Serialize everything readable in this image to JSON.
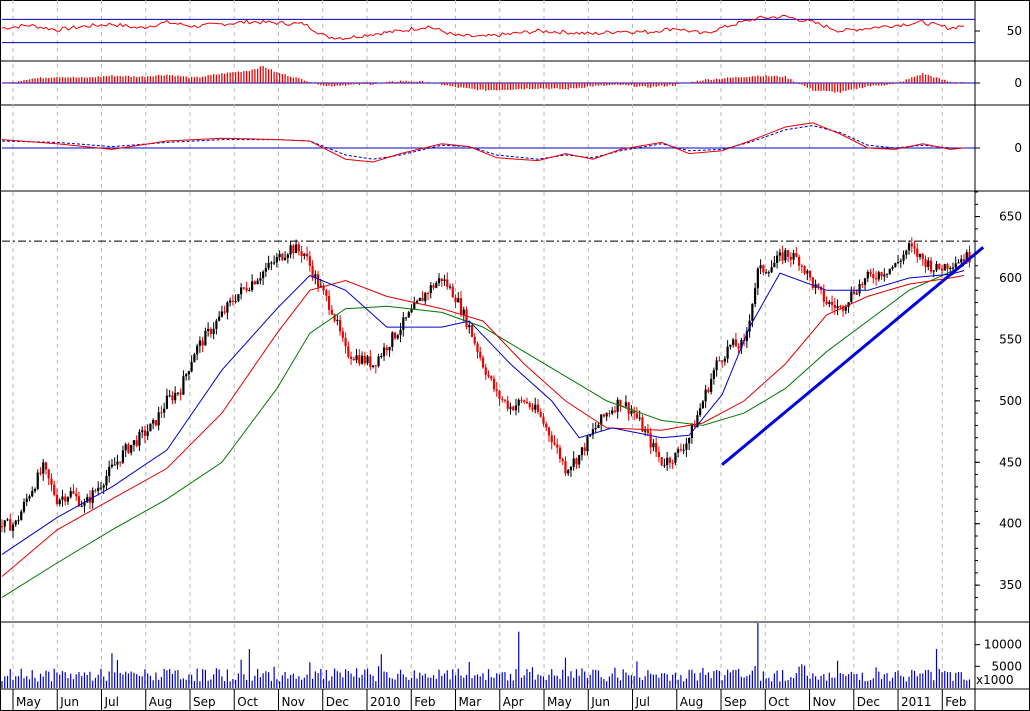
{
  "chart_data": {
    "type": "line",
    "subtype": "stock-ohlc-with-indicators",
    "time_labels": [
      "May",
      "Jun",
      "Jul",
      "Aug",
      "Sep",
      "Oct",
      "Nov",
      "Dec",
      "2010",
      "Feb",
      "Mar",
      "Apr",
      "May",
      "Jun",
      "Jul",
      "Aug",
      "Sep",
      "Oct",
      "Nov",
      "Dec",
      "2011",
      "Feb"
    ],
    "price": {
      "ylim": [
        320,
        670
      ],
      "yticks": [
        "650",
        "600",
        "550",
        "500",
        "450",
        "400",
        "350"
      ],
      "ytick_values": [
        650,
        600,
        550,
        500,
        450,
        400,
        350
      ],
      "resistance_level": 630,
      "close_series": [
        [
          0,
          398
        ],
        [
          5,
          400
        ],
        [
          10,
          425
        ],
        [
          15,
          445
        ],
        [
          20,
          420
        ],
        [
          25,
          425
        ],
        [
          30,
          415
        ],
        [
          35,
          430
        ],
        [
          40,
          445
        ],
        [
          45,
          460
        ],
        [
          50,
          470
        ],
        [
          55,
          480
        ],
        [
          60,
          500
        ],
        [
          65,
          510
        ],
        [
          70,
          540
        ],
        [
          75,
          555
        ],
        [
          80,
          570
        ],
        [
          85,
          585
        ],
        [
          90,
          595
        ],
        [
          95,
          605
        ],
        [
          100,
          615
        ],
        [
          105,
          625
        ],
        [
          110,
          620
        ],
        [
          115,
          595
        ],
        [
          120,
          575
        ],
        [
          125,
          540
        ],
        [
          130,
          535
        ],
        [
          135,
          530
        ],
        [
          140,
          545
        ],
        [
          145,
          560
        ],
        [
          150,
          575
        ],
        [
          155,
          590
        ],
        [
          160,
          600
        ],
        [
          165,
          585
        ],
        [
          170,
          560
        ],
        [
          175,
          530
        ],
        [
          180,
          505
        ],
        [
          185,
          495
        ],
        [
          190,
          500
        ],
        [
          195,
          490
        ],
        [
          200,
          470
        ],
        [
          205,
          445
        ],
        [
          210,
          455
        ],
        [
          215,
          475
        ],
        [
          220,
          490
        ],
        [
          225,
          500
        ],
        [
          230,
          490
        ],
        [
          235,
          470
        ],
        [
          240,
          450
        ],
        [
          245,
          455
        ],
        [
          250,
          470
        ],
        [
          255,
          500
        ],
        [
          260,
          530
        ],
        [
          265,
          545
        ],
        [
          270,
          545
        ],
        [
          275,
          605
        ],
        [
          280,
          610
        ],
        [
          285,
          620
        ],
        [
          290,
          615
        ],
        [
          295,
          595
        ],
        [
          300,
          580
        ],
        [
          305,
          575
        ],
        [
          310,
          590
        ],
        [
          315,
          600
        ],
        [
          320,
          605
        ],
        [
          325,
          610
        ],
        [
          330,
          625
        ],
        [
          335,
          615
        ],
        [
          340,
          607
        ],
        [
          345,
          612
        ],
        [
          350,
          617
        ]
      ],
      "ma_blue": [
        [
          0,
          375
        ],
        [
          20,
          405
        ],
        [
          40,
          430
        ],
        [
          60,
          460
        ],
        [
          80,
          525
        ],
        [
          100,
          575
        ],
        [
          112,
          602
        ],
        [
          125,
          590
        ],
        [
          140,
          560
        ],
        [
          160,
          560
        ],
        [
          170,
          565
        ],
        [
          185,
          530
        ],
        [
          200,
          500
        ],
        [
          210,
          470
        ],
        [
          222,
          478
        ],
        [
          240,
          470
        ],
        [
          250,
          472
        ],
        [
          262,
          505
        ],
        [
          272,
          560
        ],
        [
          283,
          604
        ],
        [
          300,
          590
        ],
        [
          315,
          590
        ],
        [
          330,
          600
        ],
        [
          345,
          603
        ],
        [
          350,
          606
        ]
      ],
      "ma_red": [
        [
          0,
          357
        ],
        [
          20,
          395
        ],
        [
          40,
          420
        ],
        [
          60,
          445
        ],
        [
          80,
          490
        ],
        [
          100,
          555
        ],
        [
          112,
          590
        ],
        [
          125,
          598
        ],
        [
          140,
          585
        ],
        [
          160,
          575
        ],
        [
          175,
          565
        ],
        [
          190,
          530
        ],
        [
          205,
          500
        ],
        [
          220,
          478
        ],
        [
          240,
          476
        ],
        [
          255,
          482
        ],
        [
          270,
          500
        ],
        [
          285,
          530
        ],
        [
          300,
          570
        ],
        [
          315,
          585
        ],
        [
          330,
          595
        ],
        [
          345,
          600
        ],
        [
          350,
          602
        ]
      ],
      "ma_green": [
        [
          0,
          340
        ],
        [
          20,
          368
        ],
        [
          40,
          395
        ],
        [
          60,
          420
        ],
        [
          80,
          450
        ],
        [
          100,
          510
        ],
        [
          112,
          555
        ],
        [
          125,
          575
        ],
        [
          140,
          577
        ],
        [
          160,
          572
        ],
        [
          175,
          560
        ],
        [
          190,
          540
        ],
        [
          205,
          520
        ],
        [
          220,
          500
        ],
        [
          240,
          484
        ],
        [
          255,
          480
        ],
        [
          270,
          490
        ],
        [
          285,
          510
        ],
        [
          300,
          540
        ],
        [
          315,
          565
        ],
        [
          330,
          590
        ],
        [
          345,
          605
        ],
        [
          350,
          610
        ]
      ],
      "trendline": [
        [
          262,
          448
        ],
        [
          357,
          625
        ]
      ]
    },
    "volume": {
      "ylim": [
        0,
        15000
      ],
      "yticks": [
        "10000",
        "5000"
      ],
      "ytick_values": [
        10000,
        5000
      ],
      "unit_label": "x1000",
      "spikes": [
        [
          40,
          8000
        ],
        [
          90,
          9000
        ],
        [
          138,
          7800
        ],
        [
          188,
          13000
        ],
        [
          205,
          7000
        ],
        [
          275,
          15000
        ],
        [
          340,
          9000
        ]
      ]
    },
    "oscillator_top": {
      "ylim": [
        0,
        100
      ],
      "yticks": [
        "50"
      ],
      "ytick_values": [
        50
      ],
      "levels": [
        70,
        30
      ],
      "series": [
        [
          0,
          55
        ],
        [
          10,
          60
        ],
        [
          20,
          52
        ],
        [
          30,
          58
        ],
        [
          40,
          62
        ],
        [
          50,
          55
        ],
        [
          60,
          65
        ],
        [
          70,
          58
        ],
        [
          80,
          62
        ],
        [
          90,
          66
        ],
        [
          100,
          64
        ],
        [
          110,
          62
        ],
        [
          118,
          40
        ],
        [
          125,
          38
        ],
        [
          135,
          45
        ],
        [
          145,
          50
        ],
        [
          155,
          58
        ],
        [
          165,
          42
        ],
        [
          175,
          40
        ],
        [
          185,
          45
        ],
        [
          195,
          50
        ],
        [
          205,
          48
        ],
        [
          215,
          45
        ],
        [
          225,
          50
        ],
        [
          235,
          48
        ],
        [
          245,
          55
        ],
        [
          255,
          45
        ],
        [
          265,
          60
        ],
        [
          275,
          72
        ],
        [
          285,
          75
        ],
        [
          295,
          65
        ],
        [
          305,
          50
        ],
        [
          315,
          55
        ],
        [
          325,
          60
        ],
        [
          335,
          65
        ],
        [
          345,
          55
        ],
        [
          350,
          60
        ]
      ]
    },
    "histogram": {
      "ylim": [
        -20,
        20
      ],
      "yticks": [
        "0"
      ],
      "ytick_values": [
        0
      ],
      "series": [
        [
          0,
          -1
        ],
        [
          10,
          4
        ],
        [
          20,
          6
        ],
        [
          30,
          5
        ],
        [
          40,
          7
        ],
        [
          50,
          6
        ],
        [
          60,
          8
        ],
        [
          70,
          5
        ],
        [
          80,
          9
        ],
        [
          90,
          12
        ],
        [
          95,
          16
        ],
        [
          100,
          10
        ],
        [
          110,
          3
        ],
        [
          118,
          -3
        ],
        [
          125,
          -2
        ],
        [
          135,
          -1
        ],
        [
          145,
          2
        ],
        [
          155,
          1
        ],
        [
          165,
          -4
        ],
        [
          175,
          -7
        ],
        [
          185,
          -6
        ],
        [
          195,
          -5
        ],
        [
          205,
          -6
        ],
        [
          215,
          -3
        ],
        [
          225,
          -2
        ],
        [
          235,
          -4
        ],
        [
          245,
          -2
        ],
        [
          255,
          3
        ],
        [
          265,
          5
        ],
        [
          275,
          7
        ],
        [
          285,
          6
        ],
        [
          295,
          -7
        ],
        [
          305,
          -9
        ],
        [
          315,
          -3
        ],
        [
          325,
          -1
        ],
        [
          335,
          9
        ],
        [
          345,
          1
        ],
        [
          350,
          1
        ]
      ]
    },
    "macd": {
      "ylim": [
        -30,
        30
      ],
      "yticks": [
        "0"
      ],
      "ytick_values": [
        0
      ],
      "line": [
        [
          0,
          6
        ],
        [
          20,
          3
        ],
        [
          40,
          -1
        ],
        [
          60,
          5
        ],
        [
          80,
          7
        ],
        [
          100,
          6
        ],
        [
          112,
          5
        ],
        [
          125,
          -8
        ],
        [
          135,
          -10
        ],
        [
          145,
          -4
        ],
        [
          160,
          3
        ],
        [
          170,
          1
        ],
        [
          180,
          -7
        ],
        [
          195,
          -9
        ],
        [
          205,
          -4
        ],
        [
          215,
          -8
        ],
        [
          225,
          -1
        ],
        [
          240,
          4
        ],
        [
          250,
          -4
        ],
        [
          262,
          -2
        ],
        [
          272,
          5
        ],
        [
          285,
          15
        ],
        [
          295,
          18
        ],
        [
          305,
          10
        ],
        [
          315,
          0
        ],
        [
          325,
          -1
        ],
        [
          335,
          3
        ],
        [
          345,
          -1
        ],
        [
          350,
          0
        ]
      ],
      "signal": [
        [
          0,
          5
        ],
        [
          20,
          4
        ],
        [
          40,
          1
        ],
        [
          60,
          4
        ],
        [
          80,
          6
        ],
        [
          100,
          6
        ],
        [
          112,
          5
        ],
        [
          125,
          -5
        ],
        [
          135,
          -8
        ],
        [
          145,
          -5
        ],
        [
          160,
          2
        ],
        [
          170,
          1
        ],
        [
          180,
          -5
        ],
        [
          195,
          -8
        ],
        [
          205,
          -5
        ],
        [
          215,
          -7
        ],
        [
          225,
          -2
        ],
        [
          240,
          3
        ],
        [
          250,
          -2
        ],
        [
          262,
          -1
        ],
        [
          272,
          4
        ],
        [
          285,
          13
        ],
        [
          295,
          16
        ],
        [
          305,
          11
        ],
        [
          315,
          2
        ],
        [
          325,
          0
        ],
        [
          335,
          2
        ],
        [
          345,
          0
        ],
        [
          350,
          0
        ]
      ]
    },
    "colors": {
      "up_bar": "#000000",
      "down_bar": "#ee0000",
      "ma_blue": "#0000cc",
      "ma_red": "#dd0000",
      "ma_green": "#007700",
      "trendline": "#0000dd",
      "levels": "#0000cc",
      "volume": "#0000cc",
      "grid": "#bbbbbb"
    }
  }
}
